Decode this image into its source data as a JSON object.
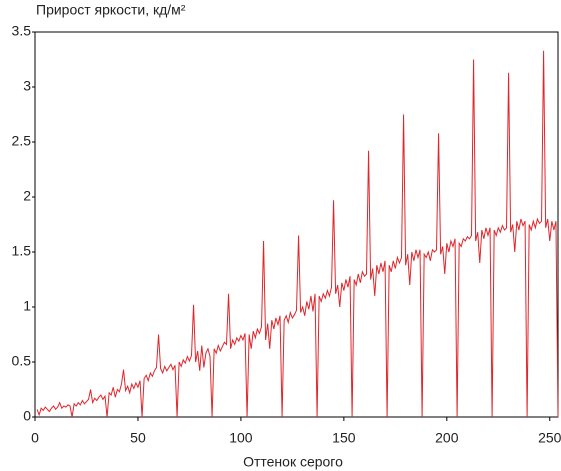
{
  "chart_data": {
    "type": "line",
    "title": "Прирост яркости, кд/м²",
    "x_label": "Оттенок серого",
    "xlim": [
      0,
      254
    ],
    "xticks": [
      0,
      50,
      100,
      150,
      200,
      250
    ],
    "ylim": [
      0,
      3.5
    ],
    "yticks": [
      0,
      0.5,
      1,
      1.5,
      2,
      2.5,
      3,
      3.5
    ],
    "grid": false,
    "x": [
      1,
      2,
      3,
      4,
      5,
      6,
      7,
      8,
      9,
      10,
      11,
      12,
      13,
      14,
      15,
      16,
      17,
      18,
      19,
      20,
      21,
      22,
      23,
      24,
      25,
      26,
      27,
      28,
      29,
      30,
      31,
      32,
      33,
      34,
      35,
      36,
      37,
      38,
      39,
      40,
      41,
      42,
      43,
      44,
      45,
      46,
      47,
      48,
      49,
      50,
      51,
      52,
      53,
      54,
      55,
      56,
      57,
      58,
      59,
      60,
      61,
      62,
      63,
      64,
      65,
      66,
      67,
      68,
      69,
      70,
      71,
      72,
      73,
      74,
      75,
      76,
      77,
      78,
      79,
      80,
      81,
      82,
      83,
      84,
      85,
      86,
      87,
      88,
      89,
      90,
      91,
      92,
      93,
      94,
      95,
      96,
      97,
      98,
      99,
      100,
      101,
      102,
      103,
      104,
      105,
      106,
      107,
      108,
      109,
      110,
      111,
      112,
      113,
      114,
      115,
      116,
      117,
      118,
      119,
      120,
      121,
      122,
      123,
      124,
      125,
      126,
      127,
      128,
      129,
      130,
      131,
      132,
      133,
      134,
      135,
      136,
      137,
      138,
      139,
      140,
      141,
      142,
      143,
      144,
      145,
      146,
      147,
      148,
      149,
      150,
      151,
      152,
      153,
      154,
      155,
      156,
      157,
      158,
      159,
      160,
      161,
      162,
      163,
      164,
      165,
      166,
      167,
      168,
      169,
      170,
      171,
      172,
      173,
      174,
      175,
      176,
      177,
      178,
      179,
      180,
      181,
      182,
      183,
      184,
      185,
      186,
      187,
      188,
      189,
      190,
      191,
      192,
      193,
      194,
      195,
      196,
      197,
      198,
      199,
      200,
      201,
      202,
      203,
      204,
      205,
      206,
      207,
      208,
      209,
      210,
      211,
      212,
      213,
      214,
      215,
      216,
      217,
      218,
      219,
      220,
      221,
      222,
      223,
      224,
      225,
      226,
      227,
      228,
      229,
      230,
      231,
      232,
      233,
      234,
      235,
      236,
      237,
      238,
      239,
      240,
      241,
      242,
      243,
      244,
      245,
      246,
      247,
      248,
      249,
      250,
      251,
      252,
      253,
      254
    ],
    "series": [
      {
        "color": "#e0262b",
        "values": [
          0.07,
          0.02,
          0.08,
          0.06,
          0.09,
          0.07,
          0.05,
          0.08,
          0.1,
          0.07,
          0.09,
          0.13,
          0.08,
          0.1,
          0.09,
          0.11,
          0.1,
          0,
          0.12,
          0.1,
          0.13,
          0.11,
          0.15,
          0.12,
          0.14,
          0.16,
          0.25,
          0.13,
          0.17,
          0.15,
          0.18,
          0.2,
          0.16,
          0.19,
          0,
          0.22,
          0.2,
          0.27,
          0.18,
          0.25,
          0.23,
          0.3,
          0.43,
          0.24,
          0.28,
          0.22,
          0.3,
          0.26,
          0.31,
          0.27,
          0.33,
          0,
          0.35,
          0.38,
          0.33,
          0.4,
          0.37,
          0.42,
          0.45,
          0.75,
          0.44,
          0.4,
          0.46,
          0.42,
          0.45,
          0.48,
          0.43,
          0.47,
          0,
          0.5,
          0.46,
          0.52,
          0.49,
          0.55,
          0.51,
          0.56,
          1.02,
          0.5,
          0.6,
          0.42,
          0.65,
          0.45,
          0.58,
          0.62,
          0.55,
          0,
          0.62,
          0.58,
          0.65,
          0.6,
          0.64,
          0.68,
          0.66,
          1.12,
          0.62,
          0.7,
          0.66,
          0.72,
          0.69,
          0.74,
          0.7,
          0.76,
          0,
          0.75,
          0.62,
          0.78,
          0.72,
          0.8,
          0.76,
          0.82,
          1.6,
          0.7,
          0.85,
          0.62,
          0.88,
          0.8,
          0.9,
          0.84,
          0.92,
          0,
          0.88,
          0.92,
          0.86,
          0.95,
          0.9,
          0.93,
          0.97,
          1.65,
          0.95,
          1.0,
          0.92,
          1.05,
          0.98,
          1.1,
          0.96,
          1.12,
          0,
          1.1,
          1.05,
          1.12,
          1.08,
          1.15,
          1.1,
          1.18,
          1.97,
          1.12,
          1.2,
          1.0,
          1.22,
          1.15,
          1.25,
          1.18,
          1.28,
          0,
          1.25,
          1.2,
          1.3,
          1.22,
          1.32,
          1.28,
          1.3,
          2.42,
          1.25,
          1.35,
          1.1,
          1.38,
          1.3,
          1.4,
          1.32,
          1.42,
          0,
          1.38,
          1.32,
          1.42,
          1.35,
          1.45,
          1.4,
          1.45,
          2.75,
          1.38,
          1.48,
          1.2,
          1.5,
          1.42,
          1.52,
          1.45,
          1.52,
          0,
          1.48,
          1.45,
          1.5,
          1.42,
          1.52,
          1.5,
          1.52,
          2.58,
          1.48,
          1.55,
          1.3,
          1.58,
          1.5,
          1.6,
          1.55,
          1.62,
          0,
          1.58,
          1.55,
          1.62,
          1.6,
          1.64,
          1.62,
          1.65,
          3.25,
          1.6,
          1.68,
          1.4,
          1.7,
          1.62,
          1.72,
          1.65,
          1.72,
          0,
          1.7,
          1.65,
          1.72,
          1.68,
          1.74,
          1.7,
          1.72,
          3.13,
          1.68,
          1.75,
          1.5,
          1.78,
          1.7,
          1.8,
          1.74,
          1.78,
          0,
          1.75,
          1.7,
          1.78,
          1.72,
          1.8,
          1.76,
          1.78,
          3.33,
          1.72,
          1.8,
          1.6,
          1.78,
          1.7,
          1.78,
          0
        ]
      }
    ]
  }
}
